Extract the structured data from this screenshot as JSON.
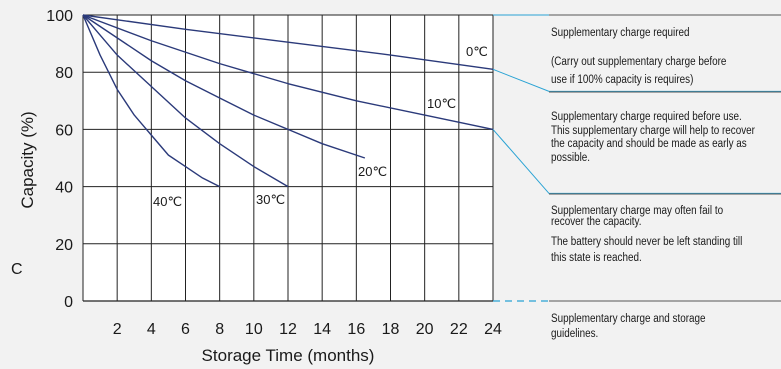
{
  "chart_data": {
    "type": "line",
    "xlabel": "Storage Time (months)",
    "ylabel": "Capacity  (%)",
    "ylabel_unit": "C",
    "xlim": [
      0,
      24
    ],
    "ylim": [
      0,
      100
    ],
    "x_ticks": [
      2,
      4,
      6,
      8,
      10,
      12,
      14,
      16,
      18,
      20,
      22,
      24
    ],
    "y_ticks": [
      0,
      20,
      40,
      60,
      80,
      100
    ],
    "grid": true,
    "series": [
      {
        "name": "0℃",
        "x": [
          0,
          6,
          12,
          18,
          24
        ],
        "y": [
          100,
          95,
          90.5,
          86,
          81
        ]
      },
      {
        "name": "10℃",
        "x": [
          0,
          4,
          8,
          12,
          16,
          20,
          24
        ],
        "y": [
          100,
          91,
          83,
          76,
          70,
          65,
          60
        ]
      },
      {
        "name": "20℃",
        "x": [
          0,
          2,
          4,
          6,
          8,
          10,
          12,
          14,
          16.5
        ],
        "y": [
          100,
          92,
          84,
          77,
          71,
          65,
          60,
          55,
          50
        ]
      },
      {
        "name": "30℃",
        "x": [
          0,
          1,
          2,
          4,
          6,
          8,
          10,
          12
        ],
        "y": [
          100,
          93,
          86,
          75,
          64,
          55,
          47,
          40
        ]
      },
      {
        "name": "40℃",
        "x": [
          0,
          1,
          2,
          3,
          4,
          5,
          6,
          7,
          8
        ],
        "y": [
          100,
          86,
          74,
          65,
          58,
          51,
          47,
          43,
          40
        ]
      }
    ],
    "zone_boundaries": [
      81,
      60,
      40
    ]
  },
  "notes": {
    "zone1_title": "Supplementary charge required",
    "zone1_body": [
      "(Carry out supplementary charge before",
      "use if 100% capacity is requires)"
    ],
    "zone2": [
      "Supplementary charge required before use.",
      "This supplementary charge will help to recover",
      "the capacity and should be made  as early as",
      "possible."
    ],
    "zone3a": [
      "Supplementary charge may often fail to",
      "recover the capacity."
    ],
    "zone3b": [
      "The battery should never be left  standing till",
      "this state is reached."
    ],
    "zone4": [
      "Supplementary charge and storage",
      "guidelines."
    ]
  },
  "colors": {
    "plot_bg": "#ffffff",
    "grid": "#222222",
    "curve": "#2b3a7a",
    "zone_line": "#2aa3d4"
  }
}
